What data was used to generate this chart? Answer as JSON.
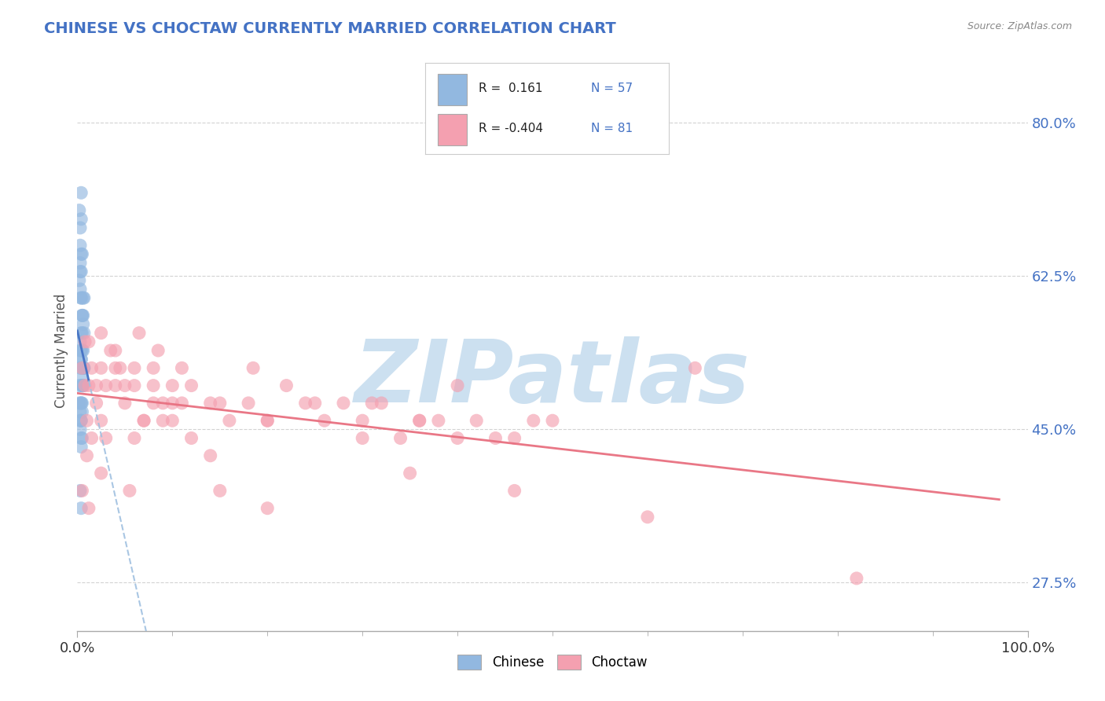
{
  "title": "CHINESE VS CHOCTAW CURRENTLY MARRIED CORRELATION CHART",
  "source_text": "Source: ZipAtlas.com",
  "ylabel": "Currently Married",
  "xlim": [
    0.0,
    1.0
  ],
  "ylim": [
    0.22,
    0.86
  ],
  "yticks": [
    0.275,
    0.45,
    0.625,
    0.8
  ],
  "ytick_labels": [
    "27.5%",
    "45.0%",
    "62.5%",
    "80.0%"
  ],
  "xtick_labels": [
    "0.0%",
    "100.0%"
  ],
  "chinese_color": "#92b8e0",
  "choctaw_color": "#f4a0b0",
  "chinese_line_color": "#4472c4",
  "choctaw_line_color": "#e87080",
  "chinese_dash_color": "#a0c0e0",
  "background_color": "#ffffff",
  "grid_color": "#c8c8c8",
  "title_color": "#4472c4",
  "watermark_text": "ZIPatlas",
  "watermark_color": "#cce0f0",
  "chinese_r": 0.161,
  "chinese_n": 57,
  "choctaw_r": -0.404,
  "choctaw_n": 81,
  "chinese_data": [
    [
      0.002,
      0.5
    ],
    [
      0.003,
      0.52
    ],
    [
      0.004,
      0.48
    ],
    [
      0.005,
      0.54
    ],
    [
      0.006,
      0.5
    ],
    [
      0.004,
      0.46
    ],
    [
      0.005,
      0.44
    ],
    [
      0.006,
      0.5
    ],
    [
      0.007,
      0.52
    ],
    [
      0.003,
      0.47
    ],
    [
      0.004,
      0.46
    ],
    [
      0.005,
      0.5
    ],
    [
      0.006,
      0.52
    ],
    [
      0.004,
      0.48
    ],
    [
      0.005,
      0.5
    ],
    [
      0.003,
      0.55
    ],
    [
      0.004,
      0.53
    ],
    [
      0.005,
      0.56
    ],
    [
      0.006,
      0.58
    ],
    [
      0.004,
      0.54
    ],
    [
      0.005,
      0.52
    ],
    [
      0.006,
      0.54
    ],
    [
      0.007,
      0.56
    ],
    [
      0.003,
      0.63
    ],
    [
      0.004,
      0.65
    ],
    [
      0.003,
      0.61
    ],
    [
      0.004,
      0.6
    ],
    [
      0.005,
      0.58
    ],
    [
      0.006,
      0.57
    ],
    [
      0.007,
      0.6
    ],
    [
      0.002,
      0.62
    ],
    [
      0.003,
      0.64
    ],
    [
      0.004,
      0.6
    ],
    [
      0.005,
      0.65
    ],
    [
      0.004,
      0.63
    ],
    [
      0.005,
      0.58
    ],
    [
      0.006,
      0.6
    ],
    [
      0.002,
      0.7
    ],
    [
      0.003,
      0.68
    ],
    [
      0.003,
      0.66
    ],
    [
      0.004,
      0.72
    ],
    [
      0.004,
      0.69
    ],
    [
      0.002,
      0.48
    ],
    [
      0.003,
      0.46
    ],
    [
      0.004,
      0.44
    ],
    [
      0.005,
      0.47
    ],
    [
      0.003,
      0.45
    ],
    [
      0.004,
      0.43
    ],
    [
      0.005,
      0.48
    ],
    [
      0.006,
      0.5
    ],
    [
      0.007,
      0.52
    ],
    [
      0.003,
      0.54
    ],
    [
      0.004,
      0.56
    ],
    [
      0.004,
      0.53
    ],
    [
      0.005,
      0.51
    ],
    [
      0.003,
      0.38
    ],
    [
      0.004,
      0.36
    ]
  ],
  "choctaw_data": [
    [
      0.005,
      0.52
    ],
    [
      0.008,
      0.5
    ],
    [
      0.012,
      0.5
    ],
    [
      0.015,
      0.52
    ],
    [
      0.02,
      0.5
    ],
    [
      0.025,
      0.52
    ],
    [
      0.03,
      0.5
    ],
    [
      0.04,
      0.5
    ],
    [
      0.05,
      0.48
    ],
    [
      0.06,
      0.5
    ],
    [
      0.07,
      0.46
    ],
    [
      0.08,
      0.48
    ],
    [
      0.09,
      0.46
    ],
    [
      0.1,
      0.5
    ],
    [
      0.04,
      0.54
    ],
    [
      0.06,
      0.52
    ],
    [
      0.08,
      0.5
    ],
    [
      0.1,
      0.48
    ],
    [
      0.12,
      0.5
    ],
    [
      0.14,
      0.48
    ],
    [
      0.16,
      0.46
    ],
    [
      0.18,
      0.48
    ],
    [
      0.2,
      0.46
    ],
    [
      0.22,
      0.5
    ],
    [
      0.24,
      0.48
    ],
    [
      0.26,
      0.46
    ],
    [
      0.28,
      0.48
    ],
    [
      0.3,
      0.46
    ],
    [
      0.32,
      0.48
    ],
    [
      0.34,
      0.44
    ],
    [
      0.36,
      0.46
    ],
    [
      0.38,
      0.46
    ],
    [
      0.4,
      0.44
    ],
    [
      0.42,
      0.46
    ],
    [
      0.44,
      0.44
    ],
    [
      0.46,
      0.44
    ],
    [
      0.48,
      0.46
    ],
    [
      0.5,
      0.46
    ],
    [
      0.01,
      0.46
    ],
    [
      0.015,
      0.44
    ],
    [
      0.02,
      0.48
    ],
    [
      0.025,
      0.46
    ],
    [
      0.03,
      0.44
    ],
    [
      0.04,
      0.52
    ],
    [
      0.05,
      0.5
    ],
    [
      0.06,
      0.44
    ],
    [
      0.07,
      0.46
    ],
    [
      0.08,
      0.52
    ],
    [
      0.09,
      0.48
    ],
    [
      0.1,
      0.46
    ],
    [
      0.12,
      0.44
    ],
    [
      0.14,
      0.42
    ],
    [
      0.008,
      0.55
    ],
    [
      0.012,
      0.55
    ],
    [
      0.025,
      0.56
    ],
    [
      0.035,
      0.54
    ],
    [
      0.045,
      0.52
    ],
    [
      0.065,
      0.56
    ],
    [
      0.085,
      0.54
    ],
    [
      0.11,
      0.52
    ],
    [
      0.15,
      0.48
    ],
    [
      0.2,
      0.46
    ],
    [
      0.25,
      0.48
    ],
    [
      0.3,
      0.44
    ],
    [
      0.35,
      0.4
    ],
    [
      0.4,
      0.5
    ],
    [
      0.005,
      0.38
    ],
    [
      0.012,
      0.36
    ],
    [
      0.15,
      0.38
    ],
    [
      0.2,
      0.36
    ],
    [
      0.6,
      0.35
    ],
    [
      0.82,
      0.28
    ],
    [
      0.65,
      0.52
    ],
    [
      0.025,
      0.4
    ],
    [
      0.055,
      0.38
    ],
    [
      0.11,
      0.48
    ],
    [
      0.185,
      0.52
    ],
    [
      0.31,
      0.48
    ],
    [
      0.01,
      0.42
    ],
    [
      0.36,
      0.46
    ],
    [
      0.46,
      0.38
    ]
  ]
}
